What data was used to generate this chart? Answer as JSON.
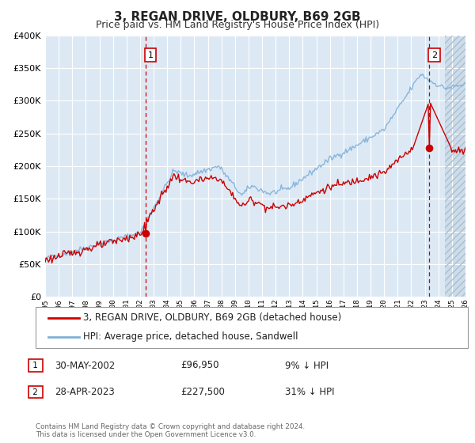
{
  "title": "3, REGAN DRIVE, OLDBURY, B69 2GB",
  "subtitle": "Price paid vs. HM Land Registry's House Price Index (HPI)",
  "legend_line1": "3, REGAN DRIVE, OLDBURY, B69 2GB (detached house)",
  "legend_line2": "HPI: Average price, detached house, Sandwell",
  "annotation1_date": "30-MAY-2002",
  "annotation1_price": "£96,950",
  "annotation1_hpi": "9% ↓ HPI",
  "annotation2_date": "28-APR-2023",
  "annotation2_price": "£227,500",
  "annotation2_hpi": "31% ↓ HPI",
  "footnote": "Contains HM Land Registry data © Crown copyright and database right 2024.\nThis data is licensed under the Open Government Licence v3.0.",
  "sale1_year": 2002.41,
  "sale1_price": 96950,
  "sale2_year": 2023.32,
  "sale2_price": 227500,
  "ylim": [
    0,
    400000
  ],
  "xlim_start": 1995,
  "xlim_end": 2026.0,
  "background_color": "#dce9f5",
  "hpi_color": "#7fb0d8",
  "paid_color": "#cc0000",
  "grid_color": "#ffffff",
  "vline_color": "#cc0000",
  "marker_color": "#cc0000",
  "hatch_start": 2024.5
}
